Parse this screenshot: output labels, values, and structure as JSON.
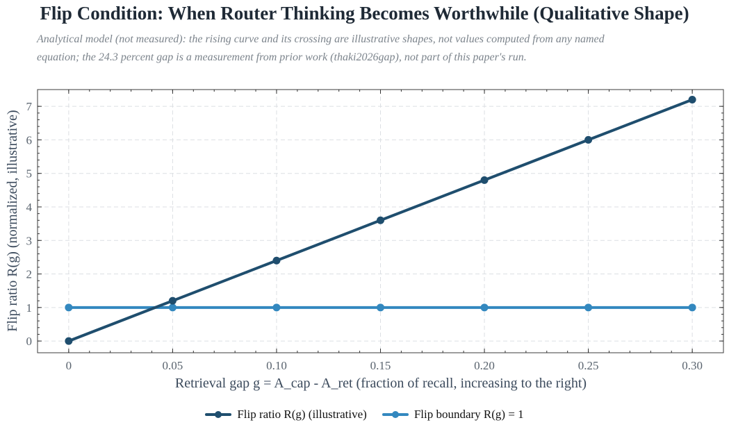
{
  "chart_data": {
    "type": "line",
    "title": "Flip Condition: When Router Thinking Becomes Worthwhile (Qualitative Shape)",
    "subtitle": "Analytical model (not measured): the rising curve and its crossing are illustrative shapes, not values computed from any named equation; the 24.3 percent gap is a measurement from prior work (thaki2026gap), not part of this paper's run.",
    "xlabel": "Retrieval gap g = A_cap - A_ret (fraction of recall, increasing to the right)",
    "ylabel": "Flip ratio R(g) (normalized, illustrative)",
    "x": [
      0,
      0.05,
      0.1,
      0.15,
      0.2,
      0.25,
      0.3
    ],
    "x_tick_labels": [
      "0",
      "0.05",
      "0.10",
      "0.15",
      "0.20",
      "0.25",
      "0.30"
    ],
    "y_ticks": [
      0,
      1,
      2,
      3,
      4,
      5,
      6,
      7
    ],
    "xlim": [
      -0.015,
      0.315
    ],
    "ylim": [
      -0.35,
      7.5
    ],
    "grid": true,
    "legend_position": "bottom-center",
    "series": [
      {
        "name": "Flip ratio R(g) (illustrative)",
        "color": "#1f4e6e",
        "values": [
          0,
          1.2,
          2.4,
          3.6,
          4.8,
          6.0,
          7.2
        ]
      },
      {
        "name": "Flip boundary R(g) = 1",
        "color": "#3388bf",
        "values": [
          1,
          1,
          1,
          1,
          1,
          1,
          1
        ]
      }
    ]
  }
}
